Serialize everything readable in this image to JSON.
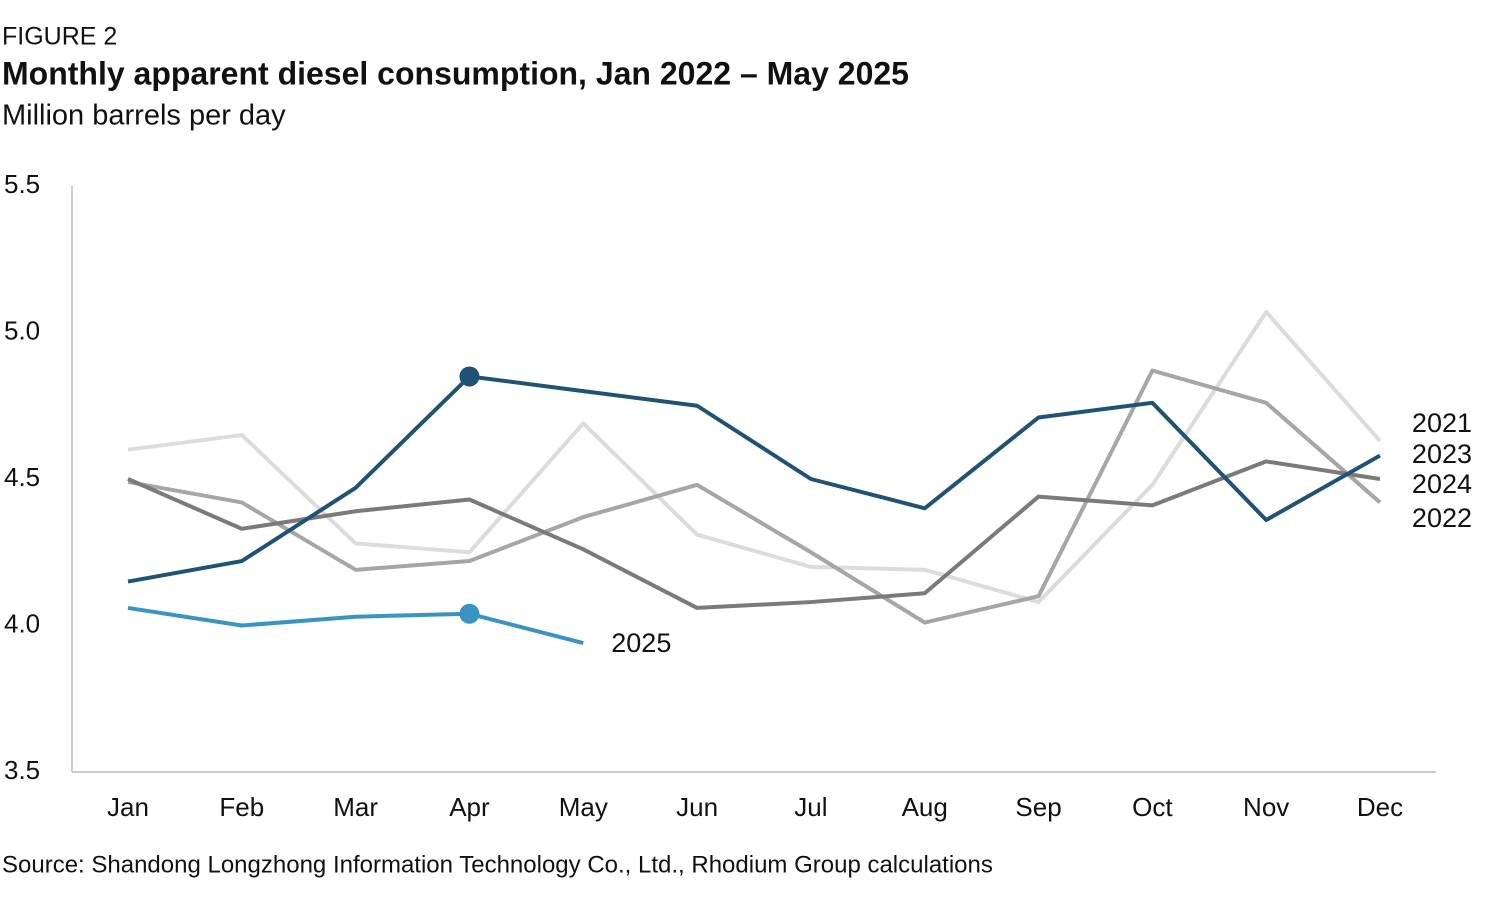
{
  "chart_data": {
    "type": "line",
    "figure_label": "FIGURE 2",
    "title": "Monthly apparent diesel consumption, Jan 2022 – May 2025",
    "subtitle": "Million barrels per day",
    "source": "Source: Shandong Longzhong Information Technology Co., Ltd., Rhodium Group calculations",
    "categories": [
      "Jan",
      "Feb",
      "Mar",
      "Apr",
      "May",
      "Jun",
      "Jul",
      "Aug",
      "Sep",
      "Oct",
      "Nov",
      "Dec"
    ],
    "series": [
      {
        "name": "2021",
        "color": "#dcdcdc",
        "values": [
          4.6,
          4.65,
          4.28,
          4.25,
          4.69,
          4.31,
          4.2,
          4.19,
          4.08,
          4.48,
          5.07,
          4.63
        ]
      },
      {
        "name": "2022",
        "color": "#a6a6a6",
        "values": [
          4.49,
          4.42,
          4.19,
          4.22,
          4.37,
          4.48,
          4.25,
          4.01,
          4.1,
          4.87,
          4.76,
          4.42
        ]
      },
      {
        "name": "2024",
        "color": "#7a7a7a",
        "values": [
          4.5,
          4.33,
          4.39,
          4.43,
          4.26,
          4.06,
          4.08,
          4.11,
          4.44,
          4.41,
          4.56,
          4.5
        ]
      },
      {
        "name": "2023",
        "color": "#1f5273",
        "values": [
          4.15,
          4.22,
          4.47,
          4.85,
          4.8,
          4.75,
          4.5,
          4.4,
          4.71,
          4.76,
          4.36,
          4.58
        ],
        "marker_index": 3
      },
      {
        "name": "2025",
        "color": "#3a93c3",
        "values": [
          4.06,
          4.0,
          4.03,
          4.04,
          3.94,
          null,
          null,
          null,
          null,
          null,
          null,
          null
        ],
        "marker_index": 3
      }
    ],
    "ylim": [
      3.5,
      5.5
    ],
    "yticks": [
      3.5,
      {
        "value": 4,
        "label": "4.0"
      },
      4.5,
      {
        "value": 5,
        "label": "5.0"
      },
      5.5
    ]
  }
}
